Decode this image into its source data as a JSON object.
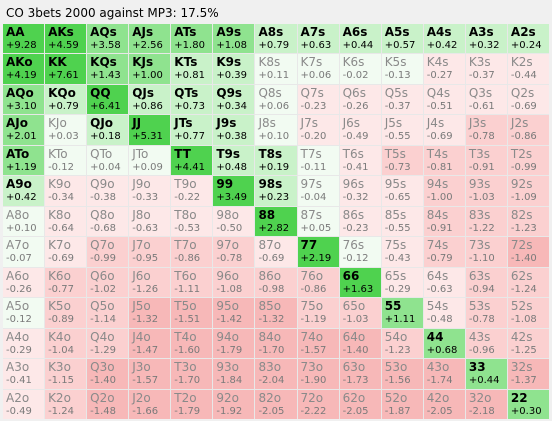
{
  "title": "CO 3bets 2000 against MP3: 17.5%",
  "colors": {
    "pos_strong": "#4fd24f",
    "pos_mid": "#8fe38f",
    "pos_light": "#c9f2c9",
    "neutral": "#f2fbf2",
    "neg_light": "#fde8e8",
    "neg_mid": "#fbd0d0",
    "neg_strong": "#f7b8b8"
  },
  "grid": [
    [
      {
        "hand": "AA",
        "ev": "+9.28"
      },
      {
        "hand": "AKs",
        "ev": "+4.59"
      },
      {
        "hand": "AQs",
        "ev": "+3.58"
      },
      {
        "hand": "AJs",
        "ev": "+2.56"
      },
      {
        "hand": "ATs",
        "ev": "+1.80"
      },
      {
        "hand": "A9s",
        "ev": "+1.08"
      },
      {
        "hand": "A8s",
        "ev": "+0.79"
      },
      {
        "hand": "A7s",
        "ev": "+0.63"
      },
      {
        "hand": "A6s",
        "ev": "+0.44"
      },
      {
        "hand": "A5s",
        "ev": "+0.57"
      },
      {
        "hand": "A4s",
        "ev": "+0.42"
      },
      {
        "hand": "A3s",
        "ev": "+0.32"
      },
      {
        "hand": "A2s",
        "ev": "+0.24"
      }
    ],
    [
      {
        "hand": "AKo",
        "ev": "+4.19"
      },
      {
        "hand": "KK",
        "ev": "+7.61"
      },
      {
        "hand": "KQs",
        "ev": "+1.43"
      },
      {
        "hand": "KJs",
        "ev": "+1.00"
      },
      {
        "hand": "KTs",
        "ev": "+0.81"
      },
      {
        "hand": "K9s",
        "ev": "+0.39"
      },
      {
        "hand": "K8s",
        "ev": "+0.11"
      },
      {
        "hand": "K7s",
        "ev": "+0.06"
      },
      {
        "hand": "K6s",
        "ev": "-0.02"
      },
      {
        "hand": "K5s",
        "ev": "-0.13"
      },
      {
        "hand": "K4s",
        "ev": "-0.27"
      },
      {
        "hand": "K3s",
        "ev": "-0.37"
      },
      {
        "hand": "K2s",
        "ev": "-0.44"
      }
    ],
    [
      {
        "hand": "AQo",
        "ev": "+3.10"
      },
      {
        "hand": "KQo",
        "ev": "+0.79"
      },
      {
        "hand": "QQ",
        "ev": "+6.41"
      },
      {
        "hand": "QJs",
        "ev": "+0.86"
      },
      {
        "hand": "QTs",
        "ev": "+0.73"
      },
      {
        "hand": "Q9s",
        "ev": "+0.34"
      },
      {
        "hand": "Q8s",
        "ev": "+0.06"
      },
      {
        "hand": "Q7s",
        "ev": "-0.23"
      },
      {
        "hand": "Q6s",
        "ev": "-0.26"
      },
      {
        "hand": "Q5s",
        "ev": "-0.37"
      },
      {
        "hand": "Q4s",
        "ev": "-0.51"
      },
      {
        "hand": "Q3s",
        "ev": "-0.61"
      },
      {
        "hand": "Q2s",
        "ev": "-0.69"
      }
    ],
    [
      {
        "hand": "AJo",
        "ev": "+2.01"
      },
      {
        "hand": "KJo",
        "ev": "+0.03"
      },
      {
        "hand": "QJo",
        "ev": "+0.18"
      },
      {
        "hand": "JJ",
        "ev": "+5.31"
      },
      {
        "hand": "JTs",
        "ev": "+0.77"
      },
      {
        "hand": "J9s",
        "ev": "+0.38"
      },
      {
        "hand": "J8s",
        "ev": "+0.10"
      },
      {
        "hand": "J7s",
        "ev": "-0.20"
      },
      {
        "hand": "J6s",
        "ev": "-0.49"
      },
      {
        "hand": "J5s",
        "ev": "-0.55"
      },
      {
        "hand": "J4s",
        "ev": "-0.69"
      },
      {
        "hand": "J3s",
        "ev": "-0.78"
      },
      {
        "hand": "J2s",
        "ev": "-0.86"
      }
    ],
    [
      {
        "hand": "ATo",
        "ev": "+1.19"
      },
      {
        "hand": "KTo",
        "ev": "-0.12"
      },
      {
        "hand": "QTo",
        "ev": "+0.04"
      },
      {
        "hand": "JTo",
        "ev": "+0.09"
      },
      {
        "hand": "TT",
        "ev": "+4.41"
      },
      {
        "hand": "T9s",
        "ev": "+0.48"
      },
      {
        "hand": "T8s",
        "ev": "+0.19"
      },
      {
        "hand": "T7s",
        "ev": "-0.11"
      },
      {
        "hand": "T6s",
        "ev": "-0.41"
      },
      {
        "hand": "T5s",
        "ev": "-0.73"
      },
      {
        "hand": "T4s",
        "ev": "-0.81"
      },
      {
        "hand": "T3s",
        "ev": "-0.91"
      },
      {
        "hand": "T2s",
        "ev": "-0.99"
      }
    ],
    [
      {
        "hand": "A9o",
        "ev": "+0.42"
      },
      {
        "hand": "K9o",
        "ev": "-0.34"
      },
      {
        "hand": "Q9o",
        "ev": "-0.38"
      },
      {
        "hand": "J9o",
        "ev": "-0.33"
      },
      {
        "hand": "T9o",
        "ev": "-0.22"
      },
      {
        "hand": "99",
        "ev": "+3.49"
      },
      {
        "hand": "98s",
        "ev": "+0.23"
      },
      {
        "hand": "97s",
        "ev": "-0.04"
      },
      {
        "hand": "96s",
        "ev": "-0.32"
      },
      {
        "hand": "95s",
        "ev": "-0.65"
      },
      {
        "hand": "94s",
        "ev": "-1.00"
      },
      {
        "hand": "93s",
        "ev": "-1.03"
      },
      {
        "hand": "92s",
        "ev": "-1.09"
      }
    ],
    [
      {
        "hand": "A8o",
        "ev": "+0.10"
      },
      {
        "hand": "K8o",
        "ev": "-0.64"
      },
      {
        "hand": "Q8o",
        "ev": "-0.68"
      },
      {
        "hand": "J8o",
        "ev": "-0.63"
      },
      {
        "hand": "T8o",
        "ev": "-0.53"
      },
      {
        "hand": "98o",
        "ev": "-0.50"
      },
      {
        "hand": "88",
        "ev": "+2.82"
      },
      {
        "hand": "87s",
        "ev": "+0.05"
      },
      {
        "hand": "86s",
        "ev": "-0.23"
      },
      {
        "hand": "85s",
        "ev": "-0.55"
      },
      {
        "hand": "84s",
        "ev": "-0.91"
      },
      {
        "hand": "83s",
        "ev": "-1.22"
      },
      {
        "hand": "82s",
        "ev": "-1.23"
      }
    ],
    [
      {
        "hand": "A7o",
        "ev": "-0.07"
      },
      {
        "hand": "K7o",
        "ev": "-0.69"
      },
      {
        "hand": "Q7o",
        "ev": "-0.99"
      },
      {
        "hand": "J7o",
        "ev": "-0.95"
      },
      {
        "hand": "T7o",
        "ev": "-0.86"
      },
      {
        "hand": "97o",
        "ev": "-0.78"
      },
      {
        "hand": "87o",
        "ev": "-0.69"
      },
      {
        "hand": "77",
        "ev": "+2.19"
      },
      {
        "hand": "76s",
        "ev": "-0.12"
      },
      {
        "hand": "75s",
        "ev": "-0.43"
      },
      {
        "hand": "74s",
        "ev": "-0.79"
      },
      {
        "hand": "73s",
        "ev": "-1.10"
      },
      {
        "hand": "72s",
        "ev": "-1.40"
      }
    ],
    [
      {
        "hand": "A6o",
        "ev": "-0.26"
      },
      {
        "hand": "K6o",
        "ev": "-0.77"
      },
      {
        "hand": "Q6o",
        "ev": "-1.02"
      },
      {
        "hand": "J6o",
        "ev": "-1.26"
      },
      {
        "hand": "T6o",
        "ev": "-1.11"
      },
      {
        "hand": "96o",
        "ev": "-1.08"
      },
      {
        "hand": "86o",
        "ev": "-0.98"
      },
      {
        "hand": "76o",
        "ev": "-0.86"
      },
      {
        "hand": "66",
        "ev": "+1.63"
      },
      {
        "hand": "65s",
        "ev": "-0.29"
      },
      {
        "hand": "64s",
        "ev": "-0.63"
      },
      {
        "hand": "63s",
        "ev": "-0.94"
      },
      {
        "hand": "62s",
        "ev": "-1.24"
      }
    ],
    [
      {
        "hand": "A5o",
        "ev": "-0.12"
      },
      {
        "hand": "K5o",
        "ev": "-0.89"
      },
      {
        "hand": "Q5o",
        "ev": "-1.14"
      },
      {
        "hand": "J5o",
        "ev": "-1.32"
      },
      {
        "hand": "T5o",
        "ev": "-1.51"
      },
      {
        "hand": "95o",
        "ev": "-1.42"
      },
      {
        "hand": "85o",
        "ev": "-1.32"
      },
      {
        "hand": "75o",
        "ev": "-1.19"
      },
      {
        "hand": "65o",
        "ev": "-1.03"
      },
      {
        "hand": "55",
        "ev": "+1.11"
      },
      {
        "hand": "54s",
        "ev": "-0.48"
      },
      {
        "hand": "53s",
        "ev": "-0.78"
      },
      {
        "hand": "52s",
        "ev": "-1.08"
      }
    ],
    [
      {
        "hand": "A4o",
        "ev": "-0.29"
      },
      {
        "hand": "K4o",
        "ev": "-1.04"
      },
      {
        "hand": "Q4o",
        "ev": "-1.29"
      },
      {
        "hand": "J4o",
        "ev": "-1.47"
      },
      {
        "hand": "T4o",
        "ev": "-1.60"
      },
      {
        "hand": "94o",
        "ev": "-1.79"
      },
      {
        "hand": "84o",
        "ev": "-1.70"
      },
      {
        "hand": "74o",
        "ev": "-1.57"
      },
      {
        "hand": "64o",
        "ev": "-1.40"
      },
      {
        "hand": "54o",
        "ev": "-1.23"
      },
      {
        "hand": "44",
        "ev": "+0.68"
      },
      {
        "hand": "43s",
        "ev": "-0.96"
      },
      {
        "hand": "42s",
        "ev": "-1.25"
      }
    ],
    [
      {
        "hand": "A3o",
        "ev": "-0.41"
      },
      {
        "hand": "K3o",
        "ev": "-1.15"
      },
      {
        "hand": "Q3o",
        "ev": "-1.40"
      },
      {
        "hand": "J3o",
        "ev": "-1.57"
      },
      {
        "hand": "T3o",
        "ev": "-1.70"
      },
      {
        "hand": "93o",
        "ev": "-1.84"
      },
      {
        "hand": "83o",
        "ev": "-2.04"
      },
      {
        "hand": "73o",
        "ev": "-1.90"
      },
      {
        "hand": "63o",
        "ev": "-1.73"
      },
      {
        "hand": "53o",
        "ev": "-1.56"
      },
      {
        "hand": "43o",
        "ev": "-1.74"
      },
      {
        "hand": "33",
        "ev": "+0.44"
      },
      {
        "hand": "32s",
        "ev": "-1.37"
      }
    ],
    [
      {
        "hand": "A2o",
        "ev": "-0.49"
      },
      {
        "hand": "K2o",
        "ev": "-1.24"
      },
      {
        "hand": "Q2o",
        "ev": "-1.48"
      },
      {
        "hand": "J2o",
        "ev": "-1.66"
      },
      {
        "hand": "T2o",
        "ev": "-1.79"
      },
      {
        "hand": "92o",
        "ev": "-1.92"
      },
      {
        "hand": "82o",
        "ev": "-2.05"
      },
      {
        "hand": "72o",
        "ev": "-2.22"
      },
      {
        "hand": "62o",
        "ev": "-2.05"
      },
      {
        "hand": "52o",
        "ev": "-1.87"
      },
      {
        "hand": "42o",
        "ev": "-2.05"
      },
      {
        "hand": "32o",
        "ev": "-2.18"
      },
      {
        "hand": "22",
        "ev": "+0.30"
      }
    ]
  ]
}
